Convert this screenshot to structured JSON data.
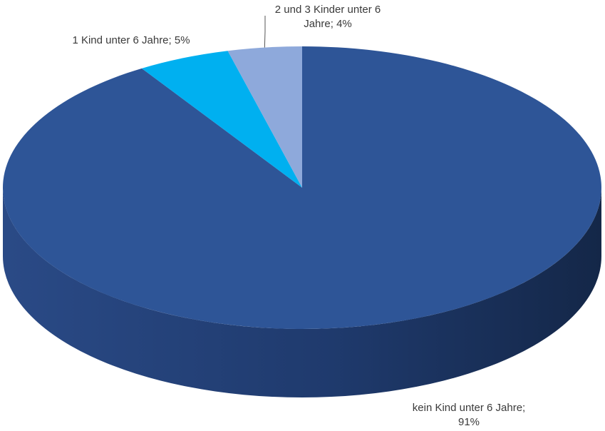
{
  "chart_data": {
    "type": "pie",
    "title": "",
    "labels": [
      "kein Kind unter 6 Jahre",
      "1 Kind unter 6 Jahre",
      "2 und 3 Kinder unter 6 Jahre"
    ],
    "values": [
      91,
      5,
      4
    ],
    "unit": "%",
    "colors": [
      "#2E5597",
      "#00B0F0",
      "#8EA9DB"
    ],
    "side_colors": [
      "#1E3869",
      "#0087BE",
      "#6B85B9"
    ],
    "data_labels": [
      {
        "line1": "kein Kind unter 6 Jahre;",
        "line2": "91%"
      },
      {
        "line1": "1 Kind unter 6 Jahre; 5%",
        "line2": ""
      },
      {
        "line1": "2 und 3 Kinder unter 6",
        "line2": "Jahre; 4%"
      }
    ],
    "legend": "none",
    "style": "3d"
  }
}
